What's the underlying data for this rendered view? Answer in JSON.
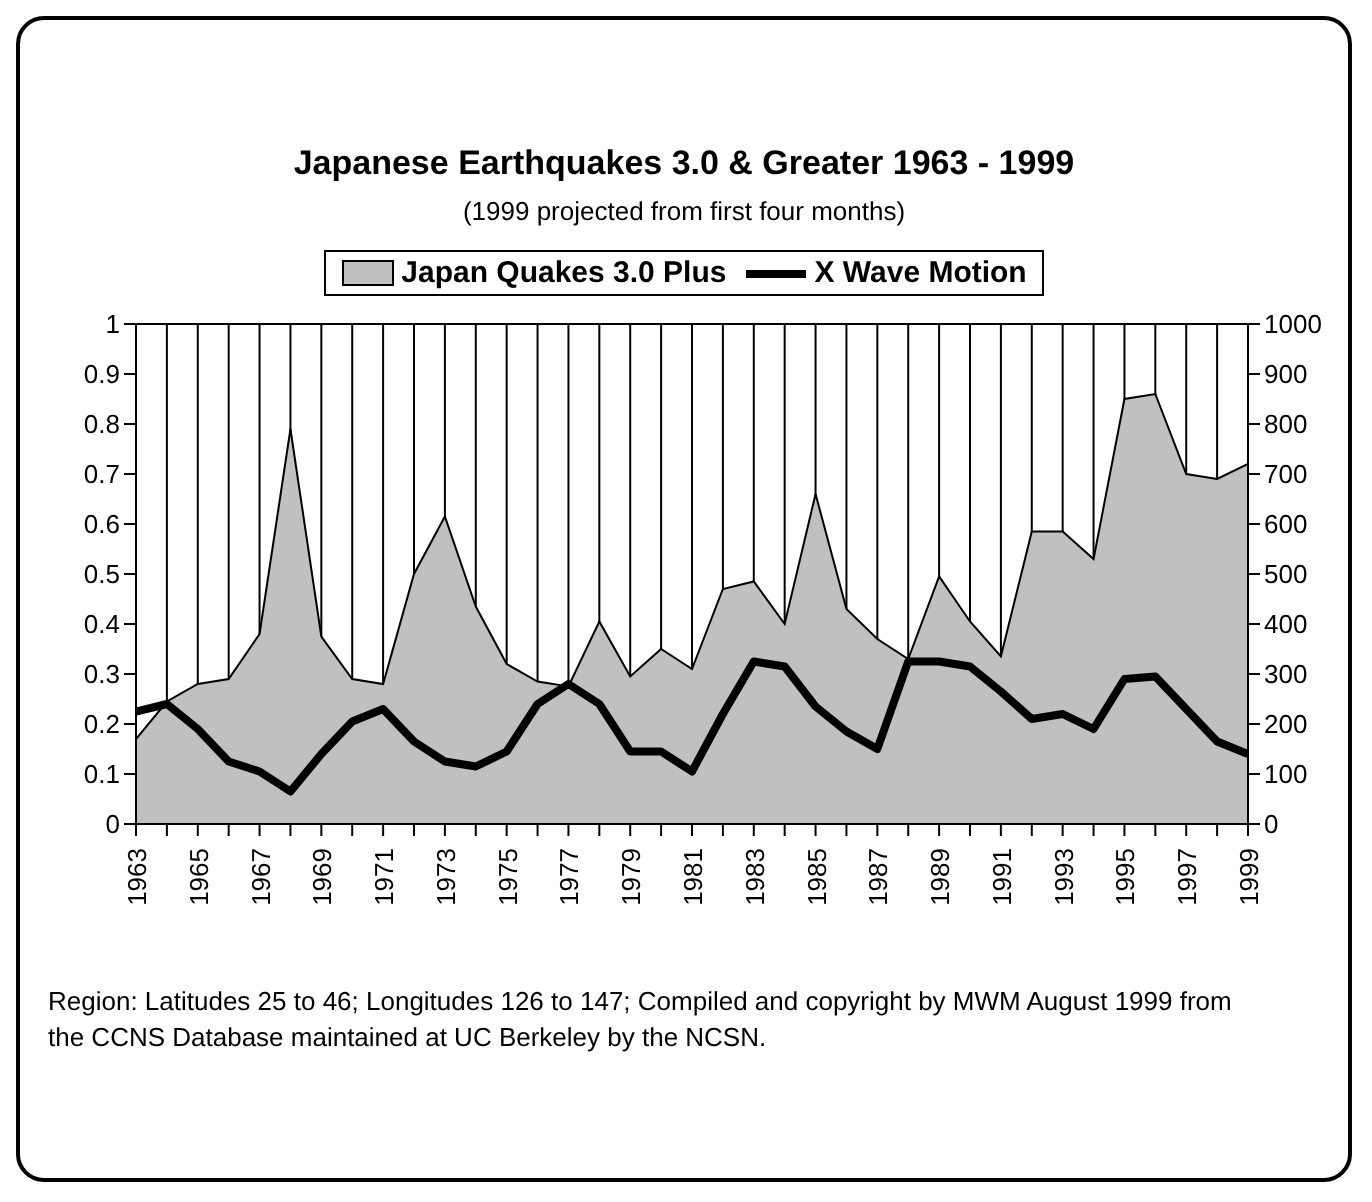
{
  "chart_data": {
    "type": "line",
    "title": "Japanese Earthquakes 3.0 & Greater 1963 - 1999",
    "subtitle": "(1999 projected from first four months)",
    "x": [
      1963,
      1964,
      1965,
      1966,
      1967,
      1968,
      1969,
      1970,
      1971,
      1972,
      1973,
      1974,
      1975,
      1976,
      1977,
      1978,
      1979,
      1980,
      1981,
      1982,
      1983,
      1984,
      1985,
      1986,
      1987,
      1988,
      1989,
      1990,
      1991,
      1992,
      1993,
      1994,
      1995,
      1996,
      1997,
      1998,
      1999
    ],
    "series": [
      {
        "name": "Japan Quakes 3.0 Plus",
        "type": "area",
        "axis": "y2",
        "color": "#c0c0c0",
        "values": [
          170,
          245,
          280,
          290,
          380,
          790,
          375,
          290,
          280,
          500,
          615,
          435,
          320,
          285,
          275,
          405,
          295,
          350,
          310,
          470,
          485,
          400,
          660,
          430,
          370,
          330,
          495,
          405,
          335,
          585,
          585,
          530,
          850,
          860,
          700,
          690,
          720
        ]
      },
      {
        "name": "X Wave Motion",
        "color": "#000000",
        "values": [
          0.225,
          0.24,
          0.19,
          0.125,
          0.105,
          0.065,
          0.14,
          0.205,
          0.23,
          0.165,
          0.125,
          0.115,
          0.145,
          0.24,
          0.28,
          0.24,
          0.145,
          0.145,
          0.105,
          0.22,
          0.325,
          0.315,
          0.235,
          0.185,
          0.15,
          0.325,
          0.325,
          0.315,
          0.265,
          0.21,
          0.22,
          0.19,
          0.29,
          0.295,
          0.23,
          0.165,
          0.14
        ]
      }
    ],
    "xlim": [
      1963,
      1999
    ],
    "xticks": [
      1963,
      {
        "value": 1964,
        "label": null
      },
      1965,
      {
        "value": 1966,
        "label": null
      },
      1967,
      {
        "value": 1968,
        "label": null
      },
      1969,
      {
        "value": 1970,
        "label": null
      },
      1971,
      {
        "value": 1972,
        "label": null
      },
      1973,
      {
        "value": 1974,
        "label": null
      },
      1975,
      {
        "value": 1976,
        "label": null
      },
      1977,
      {
        "value": 1978,
        "label": null
      },
      1979,
      {
        "value": 1980,
        "label": null
      },
      1981,
      {
        "value": 1982,
        "label": null
      },
      1983,
      {
        "value": 1984,
        "label": null
      },
      1985,
      {
        "value": 1986,
        "label": null
      },
      1987,
      {
        "value": 1988,
        "label": null
      },
      1989,
      {
        "value": 1990,
        "label": null
      },
      1991,
      {
        "value": 1992,
        "label": null
      },
      1993,
      {
        "value": 1994,
        "label": null
      },
      1995,
      {
        "value": 1996,
        "label": null
      },
      1997,
      {
        "value": 1998,
        "label": null
      },
      1999
    ],
    "ylim": [
      0,
      1
    ],
    "yticks": [
      0,
      0.1,
      0.2,
      0.3,
      0.4,
      0.5,
      0.6,
      0.7,
      0.8,
      0.9,
      1
    ],
    "y2lim": [
      0,
      1000
    ],
    "y2ticks": [
      0,
      100,
      200,
      300,
      400,
      500,
      600,
      700,
      800,
      900,
      1000
    ],
    "grid": true,
    "legend": "top",
    "marker": "none",
    "line_style": "solid",
    "annotations": [
      "Region: Latitudes 25 to 46; Longitudes 126 to 147; Compiled and copyright by MWM August 1999 from the CCNS Database maintained at UC Berkeley by the NCSN."
    ]
  }
}
